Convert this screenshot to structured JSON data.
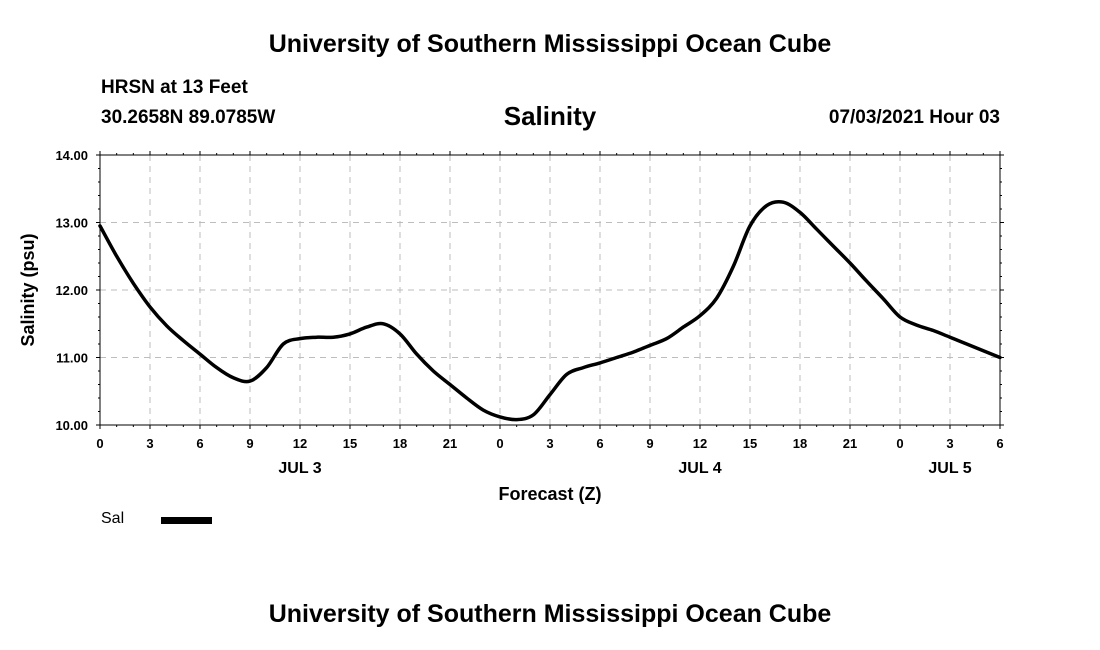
{
  "header": {
    "title": "University of Southern Mississippi Ocean Cube",
    "station": "HRSN at 13 Feet",
    "coordinates": "30.2658N  89.0785W",
    "datetime": "07/03/2021 Hour 03"
  },
  "footer": {
    "title": "University of Southern Mississippi Ocean Cube"
  },
  "legend": {
    "label": "Sal"
  },
  "chart_data": {
    "type": "line",
    "title": "Salinity",
    "xlabel": "Forecast (Z)",
    "ylabel": "Salinity (psu)",
    "xlim": [
      0,
      54
    ],
    "ylim": [
      10.0,
      14.0
    ],
    "grid": true,
    "y_ticks": [
      "10.00",
      "11.00",
      "12.00",
      "13.00",
      "14.00"
    ],
    "x_tick_labels": [
      "0",
      "3",
      "6",
      "9",
      "12",
      "15",
      "18",
      "21",
      "0",
      "3",
      "6",
      "9",
      "12",
      "15",
      "18",
      "21",
      "0",
      "3",
      "6"
    ],
    "day_labels": [
      {
        "x": 12,
        "label": "JUL 3"
      },
      {
        "x": 36,
        "label": "JUL 4"
      },
      {
        "x": 51,
        "label": "JUL 5"
      }
    ],
    "series": [
      {
        "name": "Sal",
        "x": [
          0,
          1,
          2,
          3,
          4,
          5,
          6,
          7,
          8,
          9,
          10,
          11,
          12,
          13,
          14,
          15,
          16,
          17,
          18,
          19,
          20,
          21,
          22,
          23,
          24,
          25,
          26,
          27,
          28,
          29,
          30,
          31,
          32,
          33,
          34,
          35,
          36,
          37,
          38,
          39,
          40,
          41,
          42,
          43,
          44,
          45,
          46,
          47,
          48,
          49,
          50,
          51,
          52,
          53,
          54
        ],
        "values": [
          12.95,
          12.5,
          12.1,
          11.75,
          11.47,
          11.25,
          11.05,
          10.85,
          10.7,
          10.65,
          10.85,
          11.2,
          11.28,
          11.3,
          11.3,
          11.35,
          11.45,
          11.5,
          11.35,
          11.05,
          10.8,
          10.6,
          10.4,
          10.22,
          10.12,
          10.08,
          10.15,
          10.45,
          10.75,
          10.85,
          10.92,
          11.0,
          11.08,
          11.18,
          11.28,
          11.45,
          11.62,
          11.88,
          12.35,
          12.95,
          13.25,
          13.3,
          13.15,
          12.9,
          12.65,
          12.4,
          12.13,
          11.87,
          11.6,
          11.48,
          11.4,
          11.3,
          11.2,
          11.1,
          11.0
        ]
      }
    ]
  }
}
